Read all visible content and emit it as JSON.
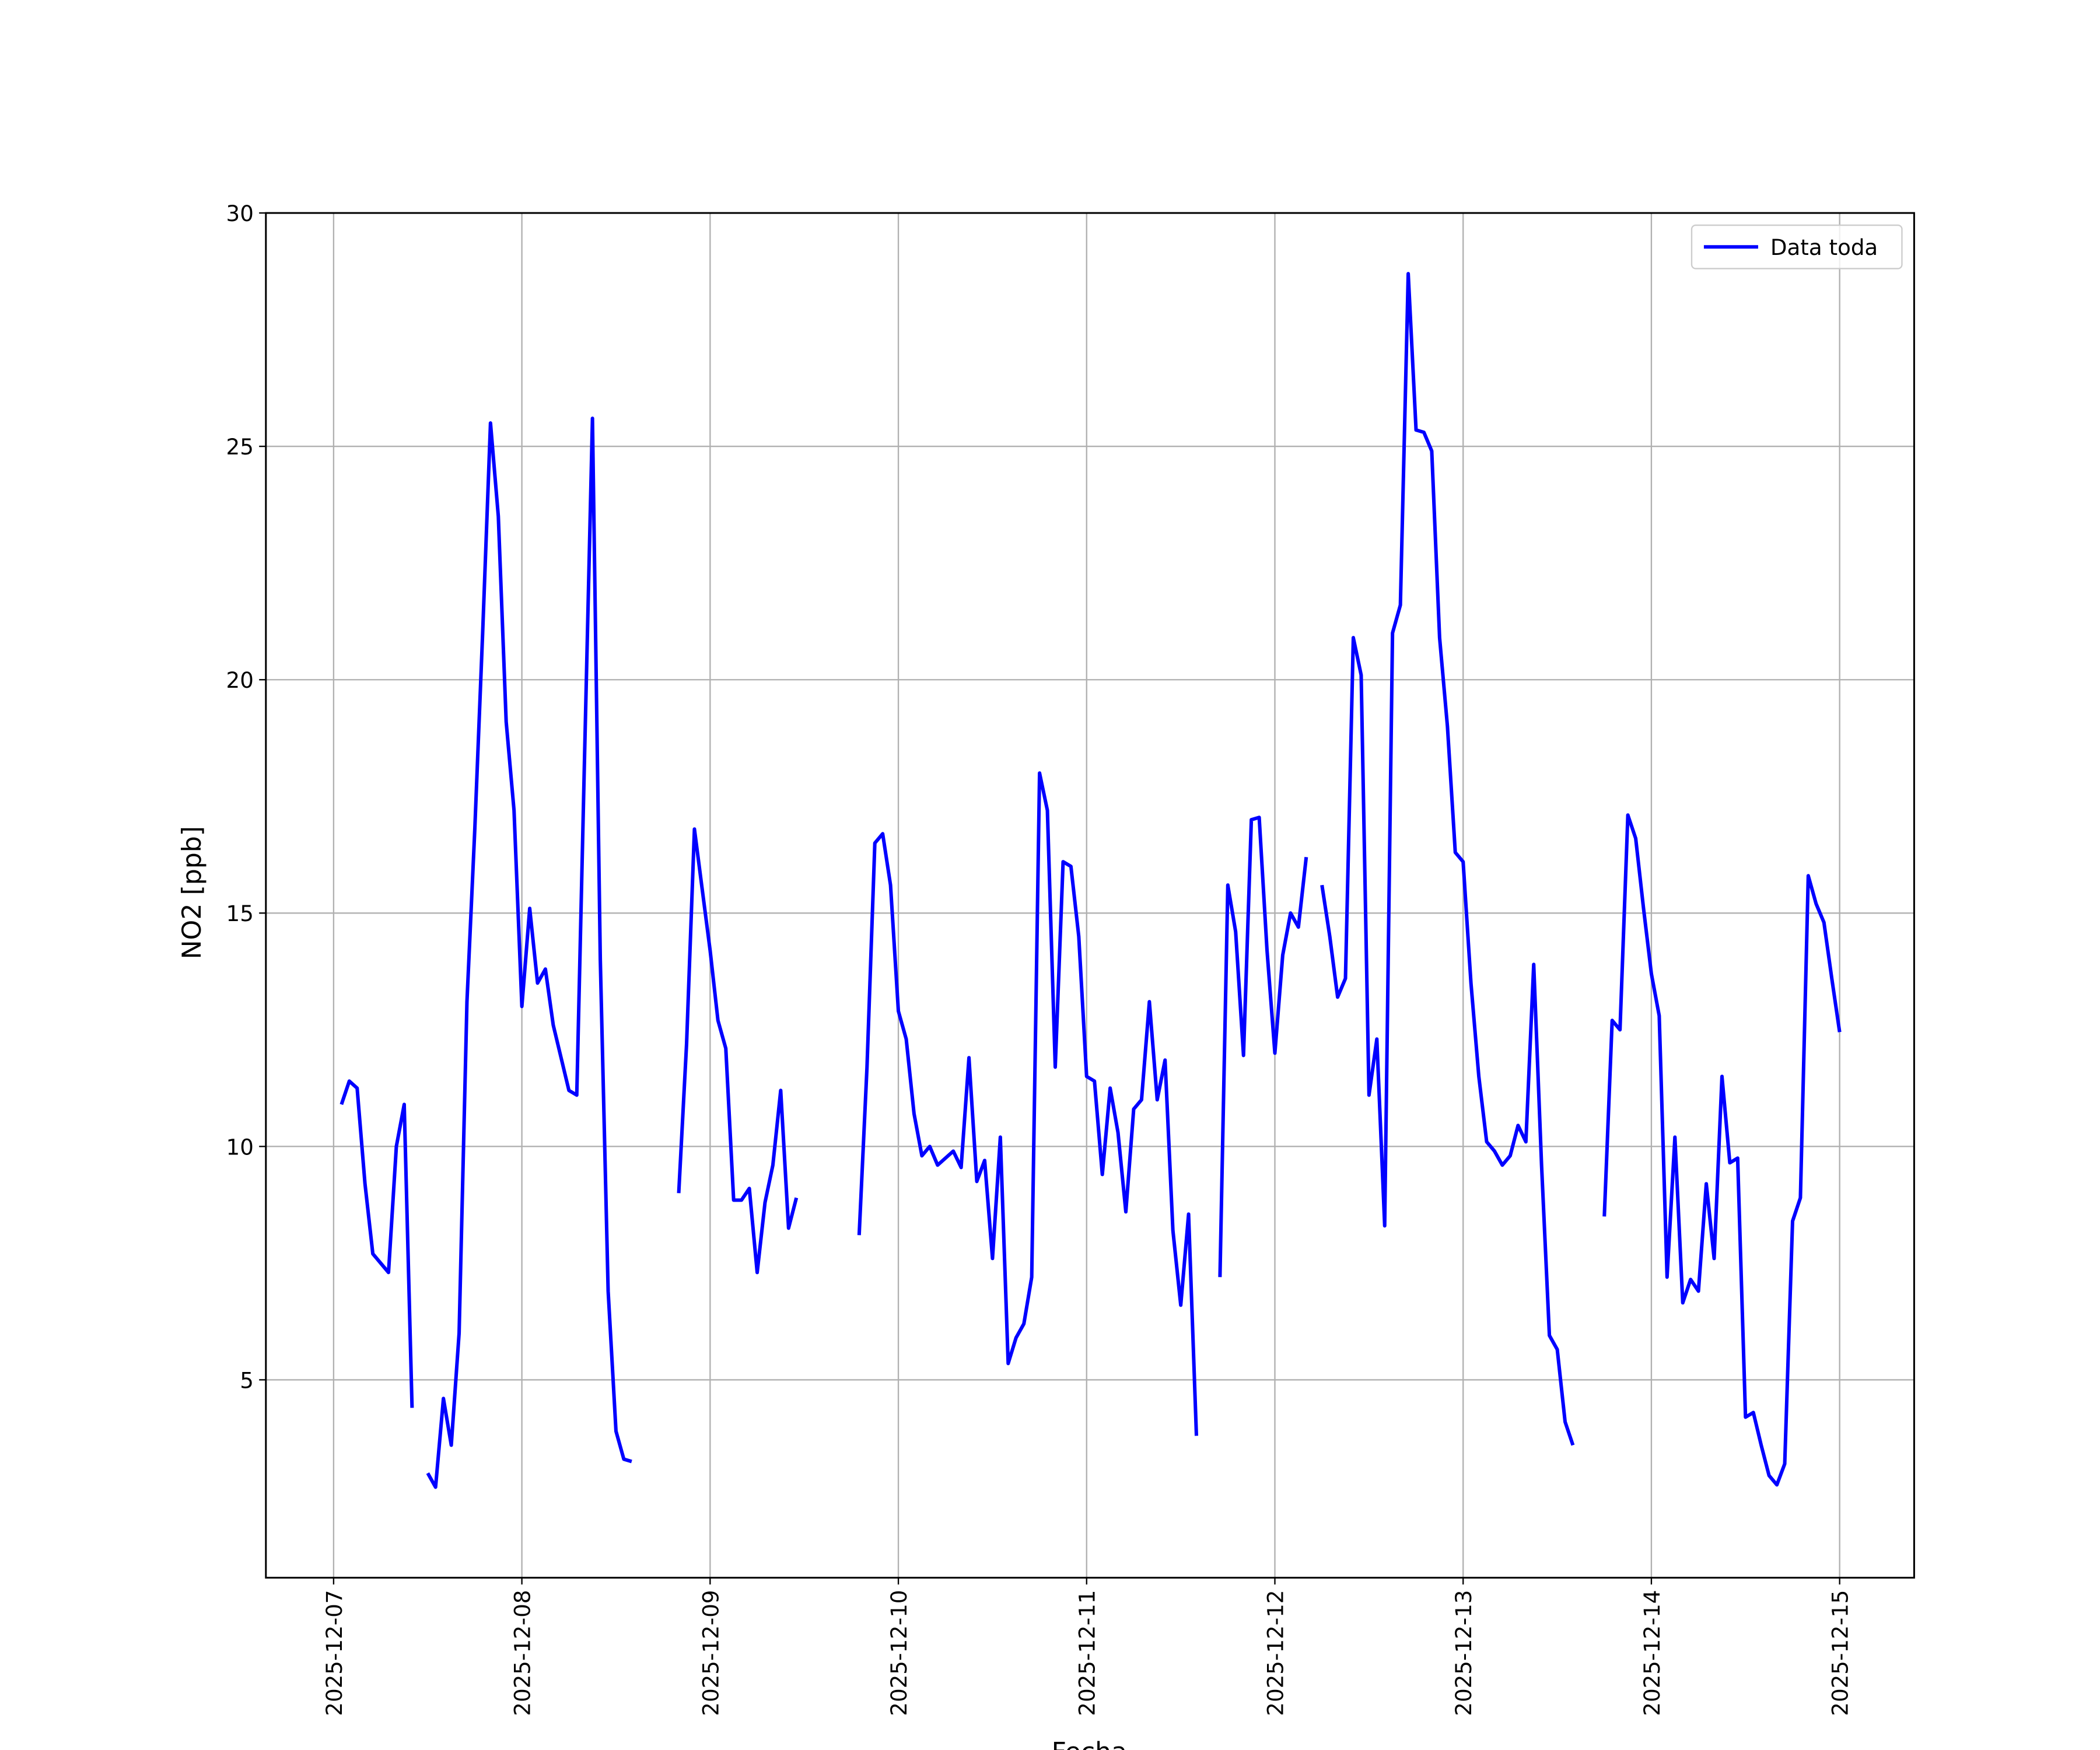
{
  "chart_data": {
    "type": "line",
    "xlabel": "Fecha",
    "ylabel": "NO2 [ppb]",
    "x": [
      "2025-12-07 01:00",
      "2025-12-07 02:00",
      "2025-12-07 03:00",
      "2025-12-07 04:00",
      "2025-12-07 05:00",
      "2025-12-07 06:00",
      "2025-12-07 07:00",
      "2025-12-07 08:00",
      "2025-12-07 09:00",
      "2025-12-07 10:00",
      "2025-12-07 11:00",
      "2025-12-07 12:00",
      "2025-12-07 13:00",
      "2025-12-07 14:00",
      "2025-12-07 15:00",
      "2025-12-07 16:00",
      "2025-12-07 17:00",
      "2025-12-07 18:00",
      "2025-12-07 19:00",
      "2025-12-07 20:00",
      "2025-12-07 21:00",
      "2025-12-07 22:00",
      "2025-12-07 23:00",
      "2025-12-08 00:00",
      "2025-12-08 01:00",
      "2025-12-08 02:00",
      "2025-12-08 03:00",
      "2025-12-08 04:00",
      "2025-12-08 05:00",
      "2025-12-08 06:00",
      "2025-12-08 07:00",
      "2025-12-08 08:00",
      "2025-12-08 09:00",
      "2025-12-08 10:00",
      "2025-12-08 11:00",
      "2025-12-08 12:00",
      "2025-12-08 13:00",
      "2025-12-08 14:00",
      "2025-12-08 15:00",
      "2025-12-08 20:00",
      "2025-12-08 21:00",
      "2025-12-08 22:00",
      "2025-12-08 23:00",
      "2025-12-09 00:00",
      "2025-12-09 01:00",
      "2025-12-09 02:00",
      "2025-12-09 03:00",
      "2025-12-09 04:00",
      "2025-12-09 05:00",
      "2025-12-09 06:00",
      "2025-12-09 07:00",
      "2025-12-09 08:00",
      "2025-12-09 09:00",
      "2025-12-09 10:00",
      "2025-12-09 11:00",
      "2025-12-09 12:00",
      "2025-12-09 19:00",
      "2025-12-09 20:00",
      "2025-12-09 21:00",
      "2025-12-09 22:00",
      "2025-12-09 23:00",
      "2025-12-10 00:00",
      "2025-12-10 01:00",
      "2025-12-10 02:00",
      "2025-12-10 03:00",
      "2025-12-10 04:00",
      "2025-12-10 05:00",
      "2025-12-10 06:00",
      "2025-12-10 07:00",
      "2025-12-10 08:00",
      "2025-12-10 09:00",
      "2025-12-10 10:00",
      "2025-12-10 11:00",
      "2025-12-10 12:00",
      "2025-12-10 13:00",
      "2025-12-10 14:00",
      "2025-12-10 15:00",
      "2025-12-10 16:00",
      "2025-12-10 17:00",
      "2025-12-10 18:00",
      "2025-12-10 19:00",
      "2025-12-10 20:00",
      "2025-12-10 21:00",
      "2025-12-10 22:00",
      "2025-12-10 23:00",
      "2025-12-11 00:00",
      "2025-12-11 01:00",
      "2025-12-11 02:00",
      "2025-12-11 03:00",
      "2025-12-11 04:00",
      "2025-12-11 05:00",
      "2025-12-11 06:00",
      "2025-12-11 07:00",
      "2025-12-11 08:00",
      "2025-12-11 09:00",
      "2025-12-11 10:00",
      "2025-12-11 11:00",
      "2025-12-11 12:00",
      "2025-12-11 13:00",
      "2025-12-11 14:00",
      "2025-12-11 15:00",
      "2025-12-11 17:00",
      "2025-12-11 18:00",
      "2025-12-11 19:00",
      "2025-12-11 20:00",
      "2025-12-11 21:00",
      "2025-12-11 22:00",
      "2025-12-11 23:00",
      "2025-12-12 00:00",
      "2025-12-12 01:00",
      "2025-12-12 02:00",
      "2025-12-12 03:00",
      "2025-12-12 04:00",
      "2025-12-12 05:00",
      "2025-12-12 06:00",
      "2025-12-12 07:00",
      "2025-12-12 08:00",
      "2025-12-12 09:00",
      "2025-12-12 10:00",
      "2025-12-12 11:00",
      "2025-12-12 12:00",
      "2025-12-12 13:00",
      "2025-12-12 14:00",
      "2025-12-12 15:00",
      "2025-12-12 16:00",
      "2025-12-12 17:00",
      "2025-12-12 18:00",
      "2025-12-12 19:00",
      "2025-12-12 20:00",
      "2025-12-12 21:00",
      "2025-12-12 22:00",
      "2025-12-12 23:00",
      "2025-12-13 00:00",
      "2025-12-13 01:00",
      "2025-12-13 02:00",
      "2025-12-13 03:00",
      "2025-12-13 04:00",
      "2025-12-13 05:00",
      "2025-12-13 06:00",
      "2025-12-13 07:00",
      "2025-12-13 08:00",
      "2025-12-13 09:00",
      "2025-12-13 10:00",
      "2025-12-13 11:00",
      "2025-12-13 12:00",
      "2025-12-13 13:00",
      "2025-12-13 14:00",
      "2025-12-13 15:00",
      "2025-12-13 18:00",
      "2025-12-13 19:00",
      "2025-12-13 20:00",
      "2025-12-13 21:00",
      "2025-12-13 22:00",
      "2025-12-13 23:00",
      "2025-12-14 00:00",
      "2025-12-14 01:00",
      "2025-12-14 02:00",
      "2025-12-14 03:00",
      "2025-12-14 04:00",
      "2025-12-14 05:00",
      "2025-12-14 06:00",
      "2025-12-14 07:00",
      "2025-12-14 08:00",
      "2025-12-14 09:00",
      "2025-12-14 10:00",
      "2025-12-14 11:00",
      "2025-12-14 12:00",
      "2025-12-14 13:00",
      "2025-12-14 14:00",
      "2025-12-14 15:00",
      "2025-12-14 16:00",
      "2025-12-14 17:00",
      "2025-12-14 18:00",
      "2025-12-14 19:00",
      "2025-12-14 20:00",
      "2025-12-14 21:00",
      "2025-12-14 22:00",
      "2025-12-14 23:00",
      "2025-12-15 00:00"
    ],
    "series": [
      {
        "name": "Data toda",
        "color": "#0000ff",
        "values": [
          10.9,
          11.4,
          11.25,
          9.2,
          7.7,
          7.5,
          7.3,
          10.0,
          10.9,
          4.4,
          null,
          3.0,
          2.7,
          4.6,
          3.6,
          6.0,
          13.1,
          16.8,
          21.0,
          25.5,
          23.5,
          19.1,
          17.2,
          13.0,
          15.1,
          13.5,
          13.8,
          12.6,
          11.9,
          11.2,
          11.1,
          18.4,
          25.6,
          14.0,
          6.9,
          3.9,
          3.3,
          3.25,
          null,
          9.0,
          12.2,
          16.8,
          15.5,
          14.2,
          12.7,
          12.1,
          8.85,
          8.85,
          9.1,
          7.3,
          8.8,
          9.6,
          11.2,
          8.25,
          8.9,
          null,
          8.1,
          11.7,
          16.5,
          16.7,
          15.6,
          12.9,
          12.3,
          10.7,
          9.8,
          10.0,
          9.6,
          9.75,
          9.9,
          9.55,
          11.9,
          9.25,
          9.7,
          7.6,
          10.2,
          5.35,
          5.9,
          6.2,
          7.2,
          18.0,
          17.2,
          11.7,
          16.1,
          16.0,
          14.5,
          11.5,
          11.4,
          9.4,
          11.25,
          10.3,
          8.6,
          10.8,
          11.0,
          13.1,
          11.0,
          11.85,
          8.2,
          6.6,
          8.55,
          3.8,
          null,
          7.2,
          15.6,
          14.6,
          11.95,
          17.0,
          17.05,
          14.2,
          12.0,
          14.1,
          15.0,
          14.7,
          16.2,
          null,
          15.6,
          14.5,
          13.2,
          13.6,
          20.9,
          20.1,
          11.1,
          12.3,
          8.3,
          21.0,
          21.6,
          28.7,
          25.35,
          25.3,
          24.9,
          20.9,
          19.0,
          16.3,
          16.1,
          13.5,
          11.5,
          10.1,
          9.9,
          9.6,
          9.8,
          10.45,
          10.1,
          13.9,
          9.6,
          5.95,
          5.65,
          4.1,
          3.6,
          null,
          8.5,
          12.7,
          12.5,
          17.1,
          16.6,
          15.1,
          13.7,
          12.8,
          7.2,
          10.2,
          6.65,
          7.15,
          6.9,
          9.2,
          7.6,
          11.5,
          9.65,
          9.75,
          4.2,
          4.3,
          3.6,
          2.95,
          2.75,
          3.2,
          8.4,
          8.9,
          15.8,
          15.2,
          14.8,
          13.6,
          12.45
        ]
      }
    ],
    "xlim": [
      "2025-12-06 15:22",
      "2025-12-15 09:30"
    ],
    "xticks": [
      "2025-12-07",
      "2025-12-08",
      "2025-12-09",
      "2025-12-10",
      "2025-12-11",
      "2025-12-12",
      "2025-12-13",
      "2025-12-14",
      "2025-12-15"
    ],
    "ylim": [
      0.76,
      30
    ],
    "yticks": [
      5,
      10,
      15,
      20,
      25,
      30
    ],
    "grid": true,
    "legend": "upper right"
  }
}
